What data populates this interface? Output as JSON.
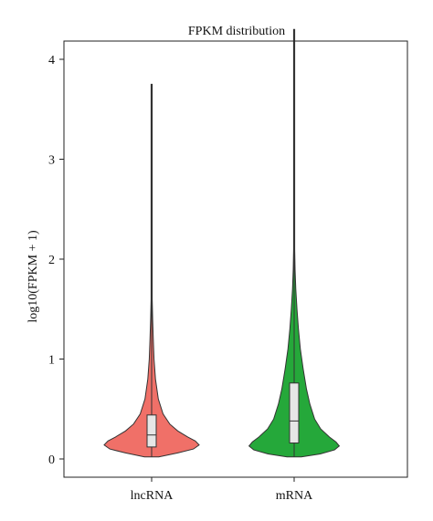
{
  "chart_data": {
    "type": "violin",
    "title": "FPKM distribution",
    "xlabel": "",
    "ylabel": "log10(FPKM + 1)",
    "ylim": [
      -0.15,
      4.55
    ],
    "yticks": [
      0,
      1,
      2,
      3,
      4
    ],
    "grid": false,
    "legend": "none",
    "categories": [
      "lncRNA",
      "mRNA"
    ],
    "series": [
      {
        "category": "lncRNA",
        "color": "#f07068",
        "min": 0.02,
        "max": 3.75,
        "q1": 0.12,
        "median": 0.24,
        "q3": 0.44,
        "whisker_low": 0.02,
        "whisker_high": 0.9,
        "density": [
          [
            0.02,
            0.15
          ],
          [
            0.06,
            0.55
          ],
          [
            0.1,
            0.88
          ],
          [
            0.14,
            1.0
          ],
          [
            0.18,
            0.92
          ],
          [
            0.22,
            0.76
          ],
          [
            0.28,
            0.55
          ],
          [
            0.35,
            0.38
          ],
          [
            0.45,
            0.24
          ],
          [
            0.6,
            0.14
          ],
          [
            0.8,
            0.08
          ],
          [
            1.0,
            0.05
          ],
          [
            1.2,
            0.035
          ],
          [
            1.4,
            0.022
          ],
          [
            1.6,
            0.012
          ],
          [
            1.8,
            0.007
          ],
          [
            2.0,
            0.004
          ],
          [
            2.5,
            0.002
          ],
          [
            3.0,
            0.0015
          ],
          [
            3.75,
            0.001
          ]
        ]
      },
      {
        "category": "mRNA",
        "color": "#25a83a",
        "min": 0.02,
        "max": 4.3,
        "q1": 0.16,
        "median": 0.38,
        "q3": 0.76,
        "whisker_low": 0.02,
        "whisker_high": 1.6,
        "density": [
          [
            0.02,
            0.15
          ],
          [
            0.05,
            0.55
          ],
          [
            0.09,
            0.85
          ],
          [
            0.13,
            0.95
          ],
          [
            0.17,
            0.88
          ],
          [
            0.22,
            0.74
          ],
          [
            0.3,
            0.56
          ],
          [
            0.4,
            0.43
          ],
          [
            0.55,
            0.33
          ],
          [
            0.7,
            0.26
          ],
          [
            0.9,
            0.19
          ],
          [
            1.1,
            0.13
          ],
          [
            1.3,
            0.09
          ],
          [
            1.5,
            0.06
          ],
          [
            1.7,
            0.035
          ],
          [
            1.9,
            0.02
          ],
          [
            2.1,
            0.01
          ],
          [
            2.5,
            0.004
          ],
          [
            3.0,
            0.002
          ],
          [
            3.5,
            0.0015
          ],
          [
            4.3,
            0.001
          ]
        ]
      }
    ]
  }
}
